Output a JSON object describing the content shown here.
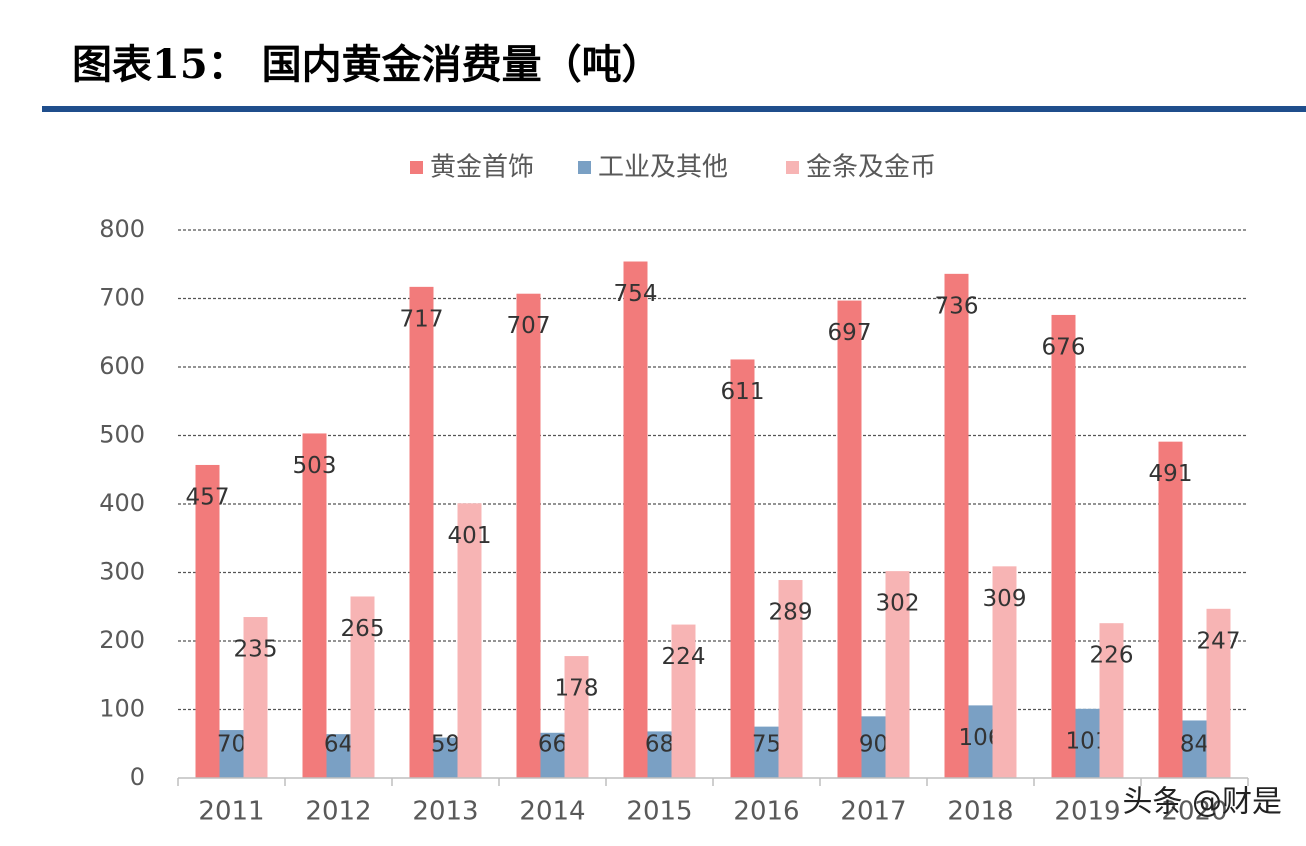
{
  "chart_data": {
    "type": "bar",
    "title": "图表15：  国内黄金消费量（吨）",
    "watermark": "头条 @财是",
    "categories": [
      "2011",
      "2012",
      "2013",
      "2014",
      "2015",
      "2016",
      "2017",
      "2018",
      "2019",
      "2020"
    ],
    "series": [
      {
        "name": "黄金首饰",
        "color": "#f27b7b",
        "values": [
          457,
          503,
          717,
          707,
          754,
          611,
          697,
          736,
          676,
          491
        ]
      },
      {
        "name": "工业及其他",
        "color": "#7aa0c4",
        "values": [
          70,
          64,
          59,
          66,
          68,
          75,
          90,
          106,
          101,
          84
        ]
      },
      {
        "name": "金条及金币",
        "color": "#f7b4b4",
        "values": [
          235,
          265,
          401,
          178,
          224,
          289,
          302,
          309,
          226,
          247
        ]
      }
    ],
    "ylim": [
      0,
      800
    ],
    "yticks": [
      0,
      100,
      200,
      300,
      400,
      500,
      600,
      700,
      800
    ],
    "grid": true,
    "legend": "top"
  }
}
